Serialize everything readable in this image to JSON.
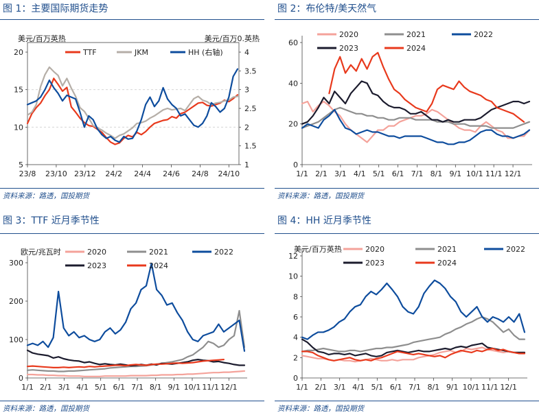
{
  "source": "资料来源：路透，国投期货",
  "chart_data": [
    {
      "id": "fig1",
      "type": "line",
      "title": "图 1：主要国际期货走势",
      "ylabel_left": "美元/百万英热",
      "ylabel_right": "美元/百万0.英热",
      "x_ticks": [
        "23/8",
        "23/10",
        "23/12",
        "24/2",
        "24/4",
        "24/6",
        "24/8",
        "24/10"
      ],
      "ylim": [
        5,
        20
      ],
      "y_ticks": [
        "5",
        "10",
        "15",
        "20"
      ],
      "ylim_right": [
        1,
        4
      ],
      "y_ticks_right": [
        "1",
        "1.5",
        "2",
        "2.5",
        "3",
        "3.5",
        "4"
      ],
      "legend_placement": "top",
      "series": [
        {
          "name": "TTF",
          "axis": "left",
          "color": "#e8391c",
          "values": [
            10.5,
            11.8,
            12.6,
            13.2,
            14.2,
            15.0,
            16.5,
            15.7,
            14.8,
            15.3,
            12.7,
            12.0,
            11.2,
            10.6,
            10.2,
            10.1,
            9.7,
            9.3,
            8.6,
            8.0,
            7.7,
            7.9,
            8.5,
            8.9,
            8.7,
            9.3,
            9.0,
            9.4,
            10.0,
            10.5,
            10.7,
            10.9,
            11.0,
            11.4,
            11.2,
            11.8,
            12.0,
            12.4,
            12.8,
            13.2,
            13.3,
            12.9,
            12.8,
            13.0,
            13.2,
            13.6,
            13.4,
            13.8,
            14.3
          ]
        },
        {
          "name": "JKM",
          "axis": "left",
          "color": "#b5aea7",
          "values": [
            11.6,
            12.0,
            13.0,
            15.4,
            17.0,
            18.0,
            17.4,
            16.9,
            15.5,
            16.5,
            15.2,
            14.1,
            12.6,
            12.1,
            11.2,
            10.2,
            9.9,
            9.6,
            9.2,
            8.9,
            8.5,
            8.9,
            9.1,
            9.5,
            9.9,
            10.5,
            10.6,
            10.8,
            11.2,
            11.5,
            11.9,
            12.3,
            12.5,
            12.3,
            12.4,
            12.5,
            12.2,
            13.0,
            13.8,
            14.1,
            13.6,
            13.4,
            13.0,
            13.2,
            13.3,
            13.5,
            13.6,
            14.0,
            14.1
          ]
        },
        {
          "name": "HH (右轴)",
          "axis": "right",
          "color": "#0d4c9d",
          "values": [
            2.6,
            2.65,
            2.7,
            2.8,
            3.0,
            3.25,
            3.05,
            2.9,
            2.7,
            2.85,
            2.8,
            2.75,
            2.4,
            2.0,
            2.3,
            2.2,
            1.95,
            1.8,
            1.7,
            1.75,
            1.65,
            1.6,
            1.75,
            1.68,
            1.7,
            1.9,
            2.2,
            2.6,
            2.8,
            2.55,
            2.7,
            3.05,
            2.75,
            2.6,
            2.5,
            2.3,
            2.35,
            2.2,
            2.05,
            2.0,
            2.1,
            2.3,
            2.65,
            2.55,
            2.4,
            2.5,
            2.8,
            3.35,
            3.55
          ]
        }
      ]
    },
    {
      "id": "fig2",
      "type": "line",
      "title": "图 2：布伦特/美天然气",
      "x_ticks": [
        "1/1",
        "2/1",
        "3/1",
        "4/1",
        "5/1",
        "6/1",
        "7/1",
        "8/1",
        "9/1",
        "10/1",
        "11/1",
        "12/1"
      ],
      "ylim": [
        0,
        60
      ],
      "y_ticks": [
        "0",
        "20",
        "40",
        "60"
      ],
      "legend_placement": "top",
      "series": [
        {
          "name": "2020",
          "color": "#f4a29a",
          "values": [
            30,
            31,
            26,
            29,
            31,
            29,
            26,
            24,
            20,
            17,
            15,
            13,
            11,
            14,
            17,
            17,
            19,
            19,
            21,
            22,
            23,
            24,
            24,
            25,
            27,
            26,
            24,
            22,
            20,
            18,
            17,
            17,
            16,
            19,
            21,
            19,
            17,
            16,
            13,
            13,
            14,
            14,
            17
          ]
        },
        {
          "name": "2021",
          "color": "#8e8e8e",
          "values": [
            18,
            19,
            20,
            21,
            23,
            25,
            27,
            28,
            27,
            26,
            25,
            25,
            24,
            24,
            23,
            23,
            22,
            22,
            23,
            23,
            23,
            22,
            22,
            22,
            22,
            21,
            21,
            21,
            20,
            20,
            20,
            19,
            19,
            19,
            19,
            18,
            18,
            18,
            18,
            18,
            19,
            20,
            21
          ]
        },
        {
          "name": "2022",
          "color": "#0d4c9d",
          "values": [
            18,
            20,
            19,
            18,
            22,
            24,
            27,
            22,
            18,
            17,
            15,
            16,
            17,
            16,
            16,
            15,
            14,
            14,
            13,
            14,
            14,
            14,
            14,
            13,
            12,
            11,
            11,
            10,
            10,
            11,
            11,
            12,
            14,
            16,
            17,
            17,
            15,
            14,
            14,
            13,
            14,
            15,
            17
          ]
        },
        {
          "name": "2023",
          "color": "#1b1b2d",
          "values": [
            20,
            21,
            24,
            28,
            33,
            30,
            36,
            33,
            30,
            35,
            38,
            41,
            40,
            35,
            34,
            31,
            29,
            28,
            28,
            27,
            25,
            25,
            26,
            24,
            22,
            22,
            21,
            22,
            21,
            21,
            22,
            22,
            22,
            23,
            25,
            27,
            28,
            29,
            30,
            31,
            31,
            30,
            31
          ]
        },
        {
          "name": "2024",
          "color": "#e8391c",
          "values": [
            null,
            null,
            null,
            null,
            null,
            35,
            47,
            53,
            45,
            49,
            46,
            52,
            47,
            53,
            55,
            48,
            42,
            37,
            35,
            32,
            30,
            28,
            27,
            26,
            30,
            37,
            39,
            38,
            37,
            41,
            38,
            36,
            35,
            34,
            32,
            31,
            28,
            27,
            26,
            25,
            23,
            21,
            null
          ]
        }
      ]
    },
    {
      "id": "fig3",
      "type": "line",
      "title": "图 3：TTF 近月季节性",
      "ylabel": "欧元/兆瓦时",
      "x_ticks": [
        "1/1",
        "2/1",
        "3/1",
        "4/1",
        "5/1",
        "6/1",
        "7/1",
        "8/1",
        "9/1",
        "10/1",
        "11/1",
        "12/1"
      ],
      "ylim": [
        0,
        300
      ],
      "y_ticks": [
        "0",
        "100",
        "200",
        "300"
      ],
      "legend_placement": "top",
      "series": [
        {
          "name": "2020",
          "color": "#f4a29a",
          "values": [
            9,
            9,
            8,
            8,
            7,
            7,
            6,
            6,
            5,
            5,
            5,
            4,
            4,
            4,
            4,
            5,
            5,
            5,
            5,
            5,
            6,
            6,
            6,
            6,
            7,
            7,
            8,
            8,
            8,
            9,
            9,
            10,
            10,
            11,
            12,
            13,
            14,
            14,
            15,
            15,
            16,
            17,
            18
          ]
        },
        {
          "name": "2021",
          "color": "#8e8e8e",
          "values": [
            20,
            21,
            20,
            19,
            18,
            18,
            17,
            17,
            18,
            18,
            19,
            20,
            21,
            22,
            23,
            24,
            26,
            27,
            28,
            29,
            30,
            30,
            31,
            32,
            34,
            36,
            38,
            40,
            42,
            45,
            48,
            55,
            60,
            70,
            80,
            95,
            90,
            80,
            85,
            100,
            110,
            175,
            80
          ]
        },
        {
          "name": "2022",
          "color": "#0d4c9d",
          "values": [
            85,
            90,
            85,
            95,
            80,
            105,
            225,
            130,
            110,
            120,
            105,
            110,
            100,
            95,
            100,
            120,
            130,
            115,
            125,
            145,
            180,
            195,
            230,
            240,
            298,
            230,
            215,
            190,
            195,
            170,
            150,
            120,
            100,
            95,
            110,
            115,
            120,
            140,
            120,
            130,
            140,
            150,
            70
          ]
        },
        {
          "name": "2023",
          "color": "#1b1b2d",
          "values": [
            72,
            65,
            62,
            60,
            58,
            52,
            55,
            50,
            47,
            45,
            44,
            40,
            42,
            38,
            35,
            37,
            35,
            34,
            36,
            34,
            32,
            33,
            35,
            33,
            36,
            34,
            38,
            37,
            36,
            38,
            40,
            42,
            46,
            48,
            46,
            45,
            42,
            43,
            40,
            38,
            35,
            33,
            33
          ]
        },
        {
          "name": "2024",
          "color": "#e8391c",
          "values": [
            30,
            31,
            30,
            29,
            28,
            27,
            27,
            28,
            27,
            28,
            29,
            28,
            30,
            29,
            30,
            31,
            32,
            33,
            33,
            32,
            34,
            35,
            34,
            33,
            35,
            36,
            36,
            37,
            38,
            39,
            38,
            39,
            40,
            42,
            44,
            45,
            46,
            47,
            48,
            null,
            null,
            null,
            null
          ]
        }
      ]
    },
    {
      "id": "fig4",
      "type": "line",
      "title": "图 4：HH 近月季节性",
      "ylabel": "美元/百万英热",
      "x_ticks": [
        "1/1",
        "2/1",
        "3/1",
        "4/1",
        "5/1",
        "6/1",
        "7/1",
        "8/1",
        "9/1",
        "10/1",
        "11/1",
        "12/1"
      ],
      "ylim": [
        0,
        12
      ],
      "y_ticks": [
        "0",
        "2",
        "4",
        "6",
        "8",
        "10",
        "12"
      ],
      "legend_placement": "top",
      "series": [
        {
          "name": "2020",
          "color": "#f4a29a",
          "values": [
            2.2,
            2.1,
            2.0,
            1.9,
            1.9,
            1.8,
            1.7,
            1.8,
            1.7,
            1.7,
            1.6,
            1.7,
            1.8,
            1.9,
            1.8,
            1.7,
            1.7,
            1.8,
            1.7,
            1.8,
            1.8,
            1.8,
            2.0,
            2.1,
            2.2,
            2.3,
            2.5,
            2.6,
            2.7,
            2.5,
            2.6,
            2.9,
            2.8,
            2.9,
            3.0,
            2.8,
            2.7,
            2.6,
            2.5,
            2.6,
            2.5,
            2.4,
            2.5
          ]
        },
        {
          "name": "2021",
          "color": "#8e8e8e",
          "values": [
            2.6,
            2.7,
            2.7,
            2.8,
            2.9,
            2.8,
            2.7,
            2.6,
            2.6,
            2.7,
            2.7,
            2.6,
            2.7,
            2.8,
            2.9,
            2.9,
            3.0,
            3.0,
            3.1,
            3.2,
            3.3,
            3.5,
            3.6,
            3.7,
            3.8,
            3.9,
            4.0,
            4.3,
            4.5,
            4.8,
            5.0,
            5.3,
            5.5,
            5.8,
            6.0,
            5.8,
            5.5,
            5.0,
            4.5,
            4.8,
            4.2,
            3.8,
            3.8
          ]
        },
        {
          "name": "2022",
          "color": "#0d4c9d",
          "values": [
            4.0,
            3.8,
            4.2,
            4.5,
            4.5,
            4.7,
            5.0,
            5.5,
            5.8,
            6.5,
            7.0,
            7.2,
            8.0,
            8.5,
            8.2,
            8.7,
            9.3,
            8.7,
            8.0,
            7.0,
            6.5,
            6.3,
            7.0,
            8.3,
            9.0,
            9.6,
            9.3,
            8.8,
            8.0,
            7.5,
            6.5,
            6.0,
            6.5,
            7.0,
            6.0,
            5.5,
            6.0,
            5.8,
            5.5,
            6.0,
            5.5,
            6.3,
            4.5
          ]
        },
        {
          "name": "2023",
          "color": "#1b1b2d",
          "values": [
            3.8,
            3.5,
            3.0,
            2.6,
            2.5,
            2.3,
            2.4,
            2.4,
            2.3,
            2.4,
            2.2,
            2.3,
            2.4,
            2.2,
            2.1,
            2.2,
            2.5,
            2.6,
            2.7,
            2.6,
            2.5,
            2.6,
            2.7,
            2.6,
            2.6,
            2.7,
            2.8,
            2.9,
            2.8,
            3.0,
            3.1,
            3.0,
            3.2,
            3.3,
            3.4,
            3.0,
            2.9,
            2.8,
            2.7,
            2.6,
            2.5,
            2.5,
            2.5
          ]
        },
        {
          "name": "2024",
          "color": "#e8391c",
          "values": [
            2.6,
            2.6,
            2.5,
            2.2,
            2.0,
            1.8,
            1.7,
            1.8,
            1.9,
            2.0,
            1.8,
            1.7,
            1.8,
            1.7,
            1.9,
            2.0,
            2.2,
            2.4,
            2.6,
            2.5,
            2.4,
            2.3,
            2.4,
            2.3,
            2.2,
            2.1,
            2.2,
            2.0,
            2.3,
            2.5,
            2.7,
            2.6,
            2.5,
            2.7,
            2.6,
            2.8,
            2.9,
            2.7,
            2.8,
            2.6,
            2.5,
            2.4,
            2.4
          ]
        }
      ]
    }
  ]
}
